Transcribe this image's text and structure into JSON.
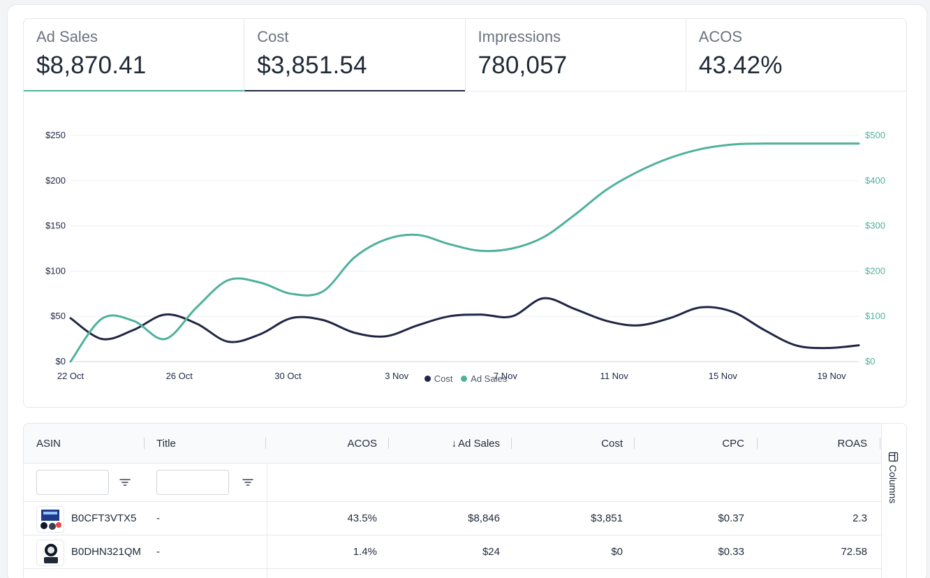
{
  "kpis": [
    {
      "label": "Ad Sales",
      "value": "$8,870.41",
      "underline": "#4fb19c"
    },
    {
      "label": "Cost",
      "value": "$3,851.54",
      "underline": "#1f2645"
    },
    {
      "label": "Impressions",
      "value": "780,057",
      "underline": ""
    },
    {
      "label": "ACOS",
      "value": "43.42%",
      "underline": ""
    }
  ],
  "chart_data": {
    "type": "line",
    "x": [
      "22 Oct",
      "23 Oct",
      "24 Oct",
      "25 Oct",
      "26 Oct",
      "27 Oct",
      "28 Oct",
      "29 Oct",
      "30 Oct",
      "31 Oct",
      "1 Nov",
      "2 Nov",
      "3 Nov",
      "4 Nov",
      "5 Nov",
      "6 Nov",
      "7 Nov",
      "8 Nov",
      "9 Nov",
      "10 Nov",
      "11 Nov",
      "12 Nov",
      "13 Nov",
      "14 Nov",
      "15 Nov",
      "16 Nov",
      "17 Nov",
      "18 Nov",
      "19 Nov",
      "20 Nov"
    ],
    "x_tick_labels": [
      "22 Oct",
      "26 Oct",
      "30 Oct",
      "3 Nov",
      "7 Nov",
      "11 Nov",
      "15 Nov",
      "19 Nov"
    ],
    "y_left_ticks": [
      "$0",
      "$50",
      "$100",
      "$150",
      "$200",
      "$250"
    ],
    "y_right_ticks": [
      "$0",
      "$100",
      "$200",
      "$300",
      "$400",
      "$500"
    ],
    "ylim_left": [
      0,
      250
    ],
    "ylim_right": [
      0,
      500
    ],
    "grid": true,
    "legend_position": "bottom",
    "series": [
      {
        "name": "Cost",
        "axis": "left",
        "color": "#1f2645",
        "values": [
          48,
          25,
          35,
          52,
          42,
          22,
          30,
          48,
          46,
          32,
          28,
          40,
          50,
          52,
          50,
          70,
          58,
          45,
          40,
          48,
          60,
          55,
          35,
          18,
          15,
          18,
          0,
          0,
          0,
          0
        ]
      },
      {
        "name": "Ad Sales",
        "axis": "right",
        "color": "#4fb19c",
        "values": [
          0,
          95,
          90,
          50,
          120,
          180,
          175,
          150,
          155,
          230,
          270,
          280,
          260,
          245,
          250,
          275,
          325,
          380,
          420,
          450,
          470,
          480,
          482,
          482,
          482,
          482,
          0,
          0,
          0,
          0
        ]
      }
    ]
  },
  "table": {
    "columns_label": "Columns",
    "headers": {
      "asin": "ASIN",
      "title": "Title",
      "acos": "ACOS",
      "ad_sales": "Ad Sales",
      "cost": "Cost",
      "cpc": "CPC",
      "roas": "ROAS"
    },
    "rows": [
      {
        "asin": "B0CFT3VTX5",
        "title": "-",
        "acos": "43.5%",
        "ad_sales": "$8,846",
        "cost": "$3,851",
        "cpc": "$0.37",
        "roas": "2.3"
      },
      {
        "asin": "B0DHN321QM",
        "title": "-",
        "acos": "1.4%",
        "ad_sales": "$24",
        "cost": "$0",
        "cpc": "$0.33",
        "roas": "72.58"
      }
    ]
  }
}
